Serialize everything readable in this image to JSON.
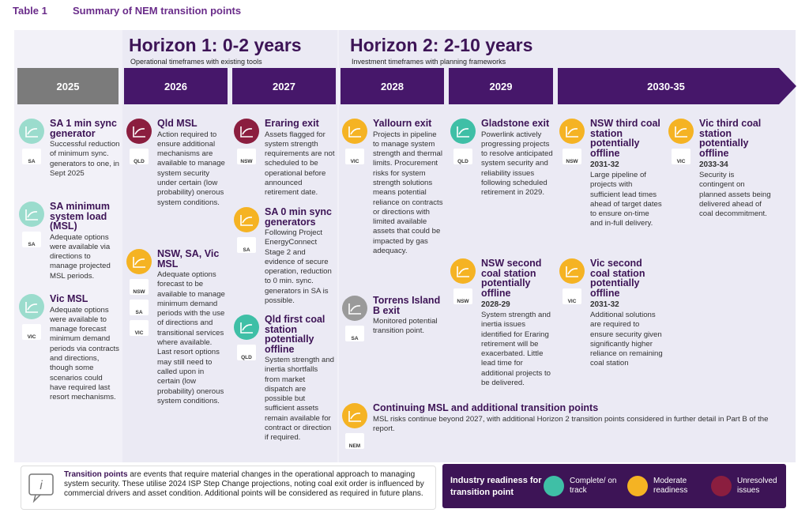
{
  "header": {
    "label": "Table 1",
    "title": "Summary of NEM transition points"
  },
  "horizons": [
    {
      "title": "Horizon 1: 0-2 years",
      "subtitle": "Operational timeframes with existing tools"
    },
    {
      "title": "Horizon 2: 2-10 years",
      "subtitle": "Investment timeframes with planning frameworks"
    }
  ],
  "years": [
    "2025",
    "2026",
    "2027",
    "2028",
    "2029",
    "2030-35"
  ],
  "items": [
    {
      "title": "SA 1 min sync generator",
      "states": [
        "SA"
      ],
      "text": "Successful reduction of minimum sync. generators to one, in Sept 2025",
      "color": "#9bdccd"
    },
    {
      "title": "SA minimum system load (MSL)",
      "states": [
        "SA"
      ],
      "text": "Adequate options were available via directions to manage projected MSL periods.",
      "color": "#9bdccd"
    },
    {
      "title": "Vic MSL",
      "states": [
        "VIC"
      ],
      "text": "Adequate options were available to manage forecast minimum demand periods via contracts and directions, though some scenarios could have required last resort mechanisms.",
      "color": "#9bdccd"
    },
    {
      "title": "Qld MSL",
      "states": [
        "QLD"
      ],
      "text": "Action required to ensure additional mechanisms are available to manage system security under certain (low probability) onerous system conditions.",
      "color": "#8b1e3f"
    },
    {
      "title": "NSW, SA, Vic MSL",
      "states": [
        "NSW",
        "SA",
        "VIC"
      ],
      "text": "Adequate options forecast to be available to manage minimum demand periods with the use of directions and transitional services where available. Last resort options may still need to called upon in certain (low probability) onerous system conditions.",
      "color": "#f5b323"
    },
    {
      "title": "Eraring exit",
      "states": [
        "NSW"
      ],
      "text": "Assets flagged for system strength requirements are not scheduled to be operational before announced retirement date.",
      "color": "#8b1e3f"
    },
    {
      "title": "SA 0 min sync generators",
      "states": [
        "SA"
      ],
      "text": "Following Project EnergyConnect Stage 2 and evidence of secure operation, reduction to 0 min. sync. generators in SA is possible.",
      "color": "#f5b323"
    },
    {
      "title": "Qld first coal station potentially offline",
      "states": [
        "QLD"
      ],
      "text": "System strength and inertia shortfalls from market dispatch are possible but sufficient assets remain available for contract or direction if required.",
      "color": "#3fbfa6"
    },
    {
      "title": "Yallourn exit",
      "states": [
        "VIC"
      ],
      "text": "Projects in pipeline to manage system strength and thermal limits. Procurement risks for system strength solutions means potential reliance on contracts or directions with limited available assets that could be impacted by gas adequacy.",
      "color": "#f5b323"
    },
    {
      "title": "Torrens Island B exit",
      "states": [
        "SA"
      ],
      "text": "Monitored potential transition point.",
      "color": "#9a9a9a"
    },
    {
      "title": "Gladstone exit",
      "states": [
        "QLD"
      ],
      "text": "Powerlink actively progressing projects to resolve anticipated system security and reliability issues following scheduled retirement in 2029.",
      "color": "#3fbfa6"
    },
    {
      "title": "NSW second coal station potentially offline",
      "states": [
        "NSW"
      ],
      "date": "2028-29",
      "text": "System strength and inertia issues identified for Eraring retirement will be exacerbated. Little lead time for additional projects to be delivered.",
      "color": "#f5b323"
    },
    {
      "title": "NSW third coal station potentially offline",
      "states": [
        "NSW"
      ],
      "date": "2031-32",
      "text": "Large pipeline of projects with sufficient lead times ahead of target dates to ensure on-time and in-full delivery.",
      "color": "#f5b323"
    },
    {
      "title": "Vic third coal station potentially offline",
      "states": [
        "VIC"
      ],
      "date": "2033-34",
      "text": "Security is contingent on planned assets being delivered ahead of coal decommitment.",
      "color": "#f5b323"
    },
    {
      "title": "Vic second coal station potentially offline",
      "states": [
        "VIC"
      ],
      "date": "2031-32",
      "text": "Additional solutions are required to ensure security given significantly higher reliance on remaining coal station",
      "color": "#f5b323"
    },
    {
      "title": "Continuing MSL and additional transition points",
      "states": [
        "NEM"
      ],
      "text": "MSL risks continue beyond 2027, with additional Horizon 2 transition points considered in further detail in Part B of the report.",
      "color": "#f5b323"
    }
  ],
  "note": {
    "bold": "Transition points",
    "text": " are events that require material changes in the operational approach to managing system security. These utilise 2024 ISP Step Change projections, noting coal exit order is influenced by commercial drivers and asset condition. Additional points will be considered as required in future plans."
  },
  "legend": {
    "title": "Industry readiness for transition point",
    "items": [
      {
        "label": "Complete/ on track",
        "color": "#3fbfa6"
      },
      {
        "label": "Moderate readiness",
        "color": "#f5b323"
      },
      {
        "label": "Unresolved issues",
        "color": "#8b1e3f"
      }
    ]
  }
}
